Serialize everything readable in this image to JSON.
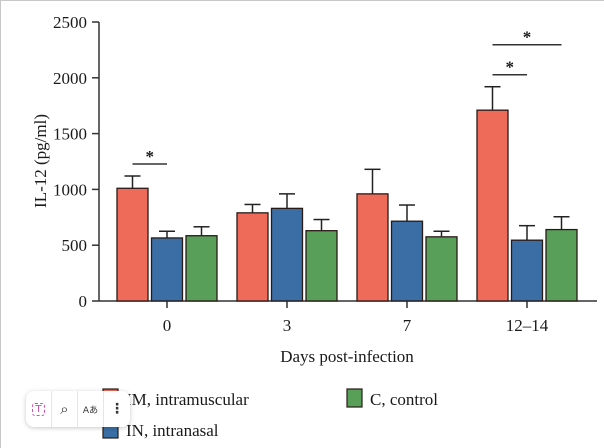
{
  "chart_data": {
    "type": "bar",
    "title": "",
    "xlabel": "Days post-infection",
    "ylabel": "IL-12 (pg/ml)",
    "ylim": [
      0,
      2500
    ],
    "yticks": [
      0,
      500,
      1000,
      1500,
      2000,
      2500
    ],
    "ytick_labels": [
      "0",
      "500",
      "1000",
      "1500",
      "2000",
      "2500"
    ],
    "categories": [
      "0",
      "3",
      "7",
      "12–14"
    ],
    "grid": false,
    "legend_position": "bottom-left",
    "series": [
      {
        "name": "IM, intramuscular",
        "color": "#EE6B5A",
        "values": [
          1010,
          790,
          960,
          1710
        ],
        "error_upper": [
          1120,
          865,
          1180,
          1920
        ]
      },
      {
        "name": "IN, intranasal",
        "color": "#3A6EA5",
        "values": [
          565,
          830,
          715,
          545
        ],
        "error_upper": [
          625,
          960,
          860,
          675
        ]
      },
      {
        "name": "C, control",
        "color": "#58A05A",
        "values": [
          585,
          630,
          575,
          640
        ],
        "error_upper": [
          665,
          730,
          625,
          755
        ]
      }
    ],
    "significance": [
      {
        "category": "0",
        "from_series": 0,
        "to_series": 1,
        "label": "*"
      },
      {
        "category": "12–14",
        "from_series": 0,
        "to_series": 1,
        "label": "*"
      },
      {
        "category": "12–14",
        "from_series": 0,
        "to_series": 2,
        "label": "*"
      }
    ]
  },
  "overlay_toolbar": {
    "buttons": [
      {
        "name": "text-select",
        "glyph": "T"
      },
      {
        "name": "visual-search",
        "glyph": "⌕"
      },
      {
        "name": "translate",
        "glyph": "Aあ"
      },
      {
        "name": "more",
        "glyph": "⋮"
      }
    ]
  }
}
